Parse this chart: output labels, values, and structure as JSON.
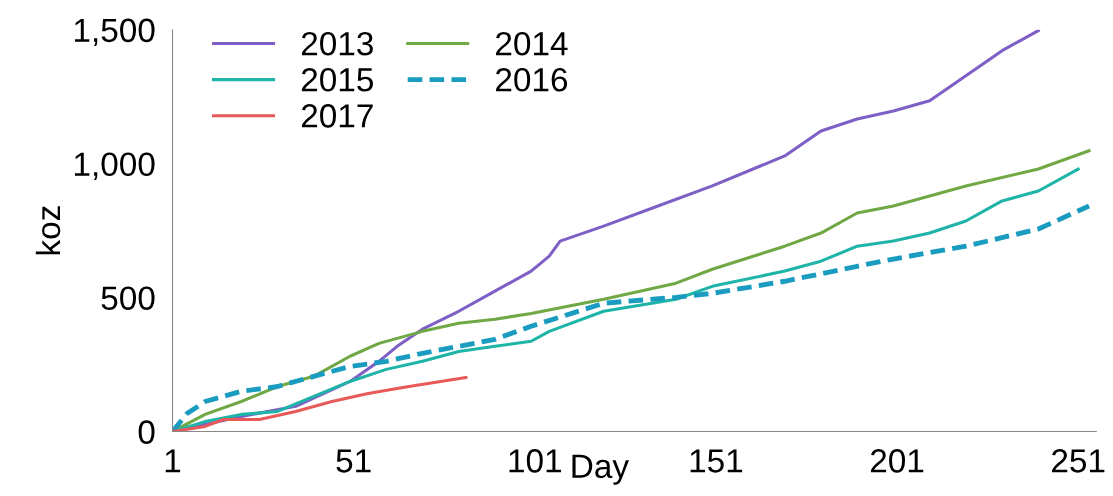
{
  "chart_data": {
    "type": "line",
    "xlabel": "Day",
    "ylabel": "koz",
    "xlim": [
      1,
      256
    ],
    "xticks": [
      1,
      51,
      101,
      151,
      201,
      251
    ],
    "ylim": [
      0,
      1500
    ],
    "yticks": [
      0,
      500,
      {
        "value": 1000,
        "label": "1,000"
      },
      {
        "value": 1500,
        "label": "1,500"
      }
    ],
    "grid": false,
    "legend": "top left",
    "marker": "none",
    "series": [
      {
        "name": "2013",
        "color": "#7e5fc6",
        "line_style": "solid",
        "x": [
          1,
          20,
          35,
          50,
          58,
          63,
          70,
          80,
          90,
          100,
          105,
          108,
          120,
          135,
          150,
          170,
          180,
          190,
          200,
          210,
          220,
          230,
          240
        ],
        "values": [
          0,
          56,
          94,
          187,
          262,
          318,
          382,
          449,
          524,
          599,
          655,
          711,
          767,
          842,
          917,
          1029,
          1122,
          1167,
          1197,
          1235,
          1328,
          1422,
          1497
        ]
      },
      {
        "name": "2014",
        "color": "#70a845",
        "line_style": "solid",
        "x": [
          1,
          10,
          20,
          30,
          40,
          50,
          58,
          70,
          80,
          90,
          100,
          120,
          140,
          150,
          170,
          180,
          190,
          200,
          220,
          240,
          254
        ],
        "values": [
          0,
          64,
          112,
          168,
          206,
          281,
          329,
          374,
          404,
          419,
          441,
          494,
          554,
          606,
          692,
          741,
          816,
          842,
          917,
          980,
          1048
        ]
      },
      {
        "name": "2015",
        "color": "#1fb4a8",
        "line_style": "solid",
        "x": [
          1,
          10,
          20,
          30,
          40,
          50,
          60,
          70,
          80,
          90,
          100,
          105,
          120,
          140,
          150,
          170,
          180,
          190,
          200,
          210,
          220,
          230,
          240,
          251
        ],
        "values": [
          0,
          37,
          64,
          75,
          131,
          187,
          232,
          262,
          299,
          318,
          337,
          374,
          449,
          494,
          542,
          599,
          636,
          692,
          711,
          741,
          786,
          861,
          898,
          980
        ]
      },
      {
        "name": "2016",
        "color": "#1a9cc0",
        "line_style": "dashed",
        "x": [
          1,
          5,
          10,
          20,
          30,
          40,
          50,
          60,
          70,
          80,
          90,
          100,
          120,
          140,
          150,
          170,
          190,
          200,
          220,
          240,
          254
        ],
        "values": [
          0,
          67,
          112,
          150,
          168,
          206,
          243,
          262,
          292,
          318,
          344,
          393,
          479,
          501,
          516,
          561,
          617,
          644,
          692,
          756,
          842
        ]
      },
      {
        "name": "2017",
        "color": "#e85a5a",
        "line_style": "solid",
        "x": [
          1,
          10,
          15,
          25,
          35,
          45,
          55,
          65,
          75,
          82
        ],
        "values": [
          0,
          19,
          45,
          45,
          75,
          112,
          142,
          165,
          187,
          202
        ]
      }
    ]
  }
}
